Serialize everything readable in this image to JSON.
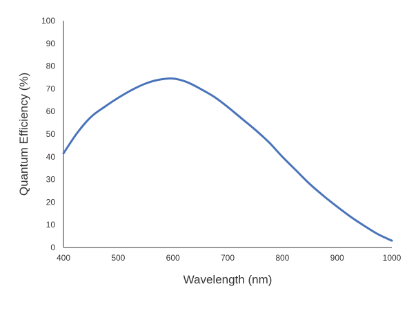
{
  "chart_data": {
    "type": "line",
    "title": "",
    "xlabel": "Wavelength (nm)",
    "ylabel": "Quantum Efficiency (%)",
    "xlim": [
      400,
      1000
    ],
    "ylim": [
      0,
      100
    ],
    "grid": false,
    "x_ticks": [
      400,
      500,
      600,
      700,
      800,
      900,
      1000
    ],
    "y_ticks": [
      0,
      10,
      20,
      30,
      40,
      50,
      60,
      70,
      80,
      90,
      100
    ],
    "series": [
      {
        "name": "Quantum Efficiency",
        "color": "#4a74b9",
        "x": [
          400,
          425,
          450,
          475,
          500,
          525,
          550,
          575,
          600,
          625,
          650,
          675,
          700,
          725,
          750,
          775,
          800,
          825,
          850,
          875,
          900,
          925,
          950,
          975,
          1000
        ],
        "y": [
          41.5,
          50.5,
          57.5,
          62.0,
          66.0,
          69.5,
          72.3,
          74.0,
          74.5,
          73.0,
          70.0,
          66.5,
          62.0,
          57.0,
          52.0,
          46.5,
          40.0,
          34.0,
          28.0,
          22.8,
          18.0,
          13.5,
          9.5,
          5.8,
          3.0
        ]
      }
    ]
  }
}
